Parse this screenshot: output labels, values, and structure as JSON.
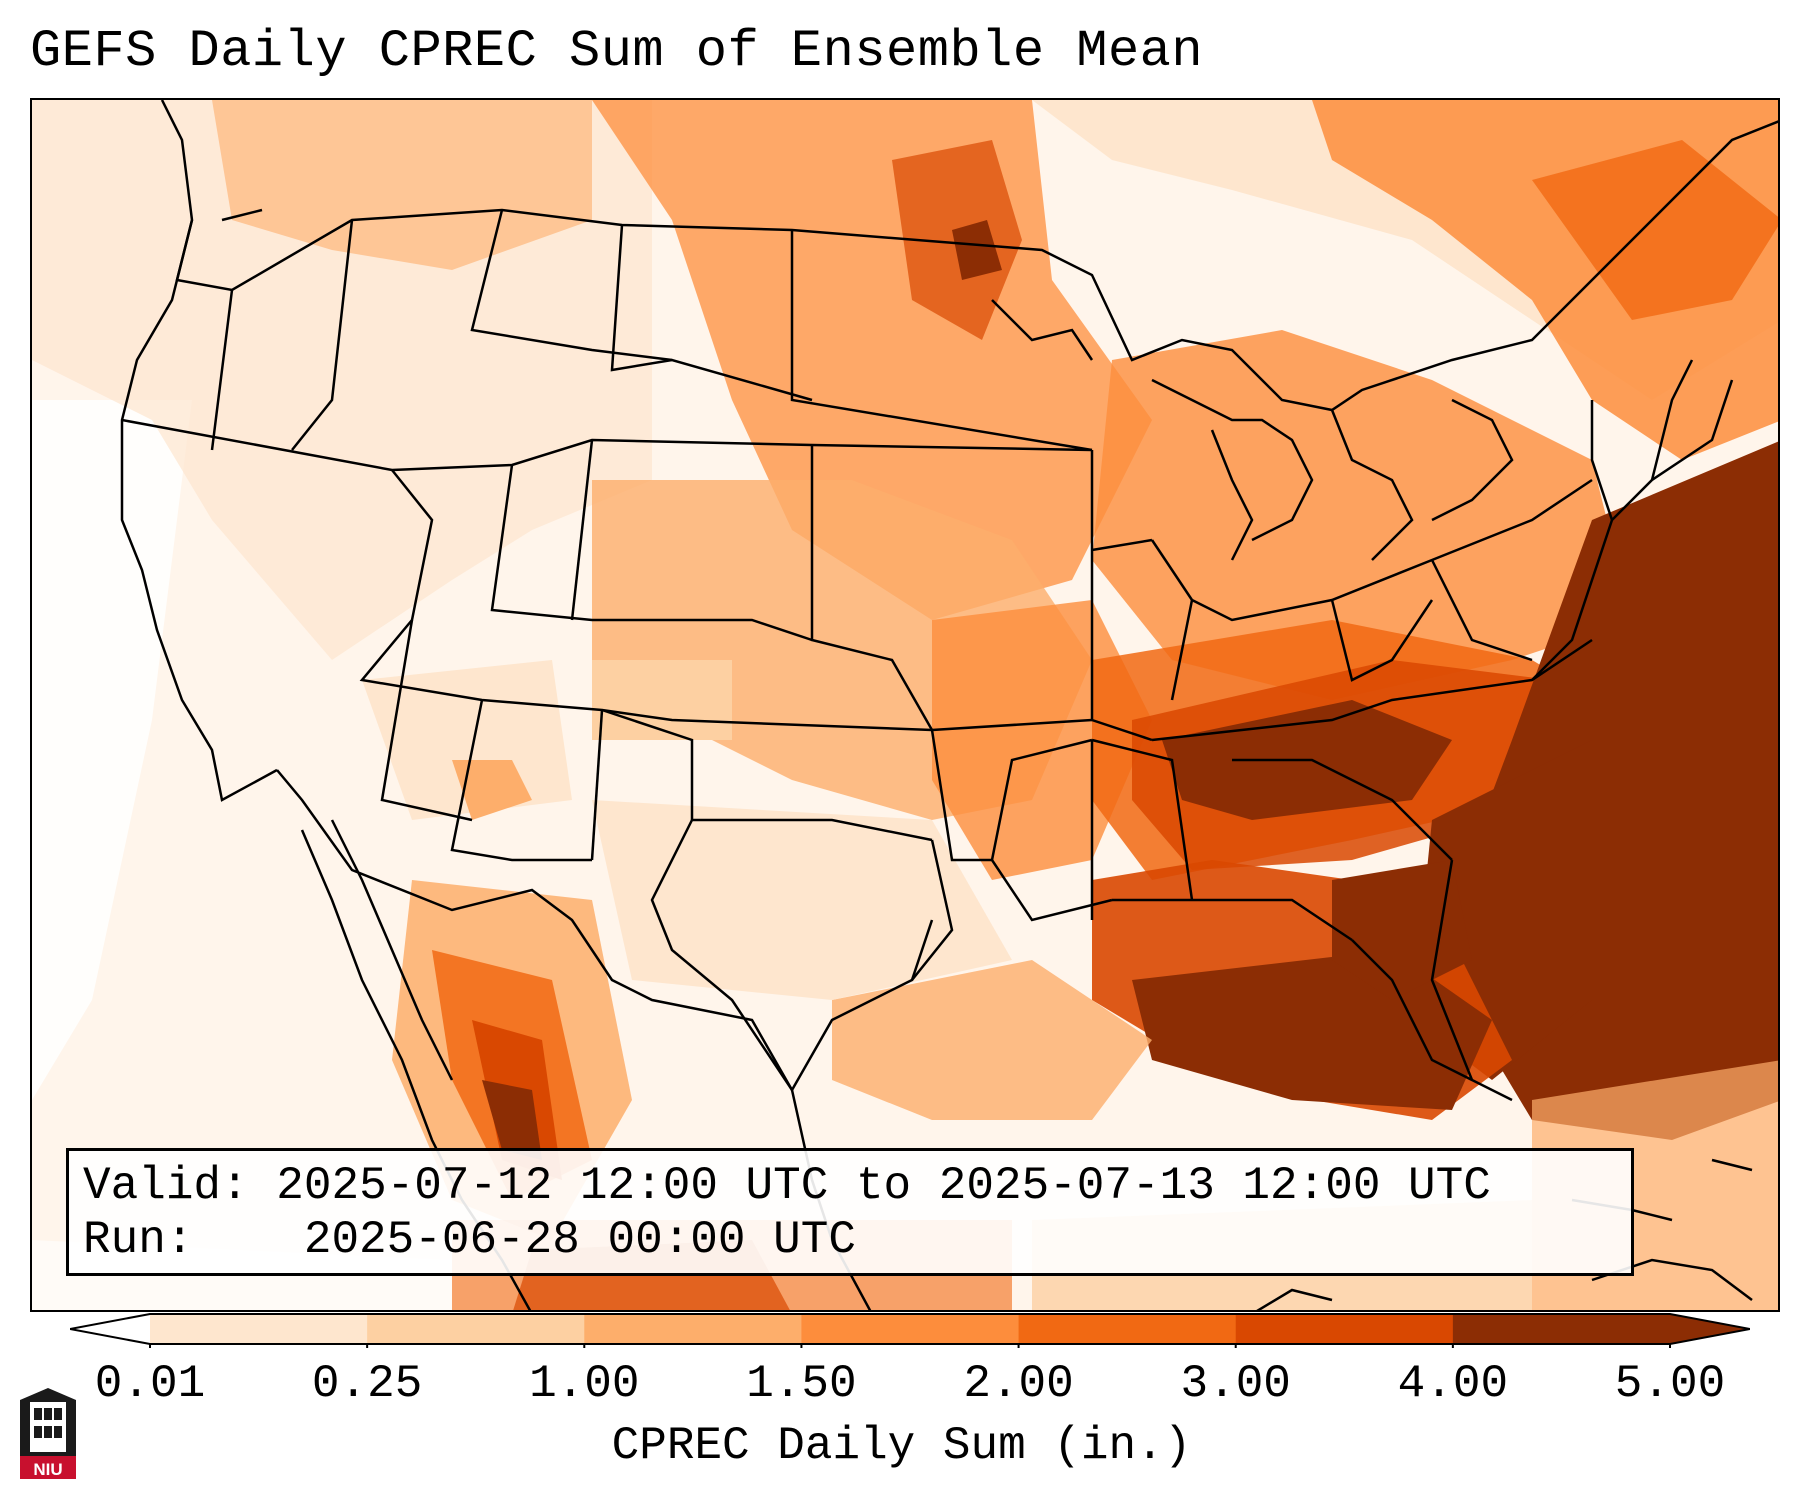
{
  "title": "GEFS Daily CPREC Sum of Ensemble Mean",
  "info": {
    "valid_label": "Valid:",
    "valid_value": "2025-07-12 12:00 UTC to 2025-07-13 12:00 UTC",
    "run_label": "Run:",
    "run_value": "2025-06-28 00:00 UTC"
  },
  "colorbar": {
    "title": "CPREC Daily Sum (in.)",
    "ticks": [
      "0.01",
      "0.25",
      "1.00",
      "1.50",
      "2.00",
      "3.00",
      "4.00",
      "5.00"
    ],
    "colors": [
      "#fff5eb",
      "#fee6ce",
      "#fdd0a2",
      "#fdae6b",
      "#fd8d3c",
      "#f16913",
      "#d94801",
      "#8c2d04"
    ],
    "extend": "both"
  },
  "logo": {
    "text": "NIU",
    "bg_color": "#c8102e"
  }
}
